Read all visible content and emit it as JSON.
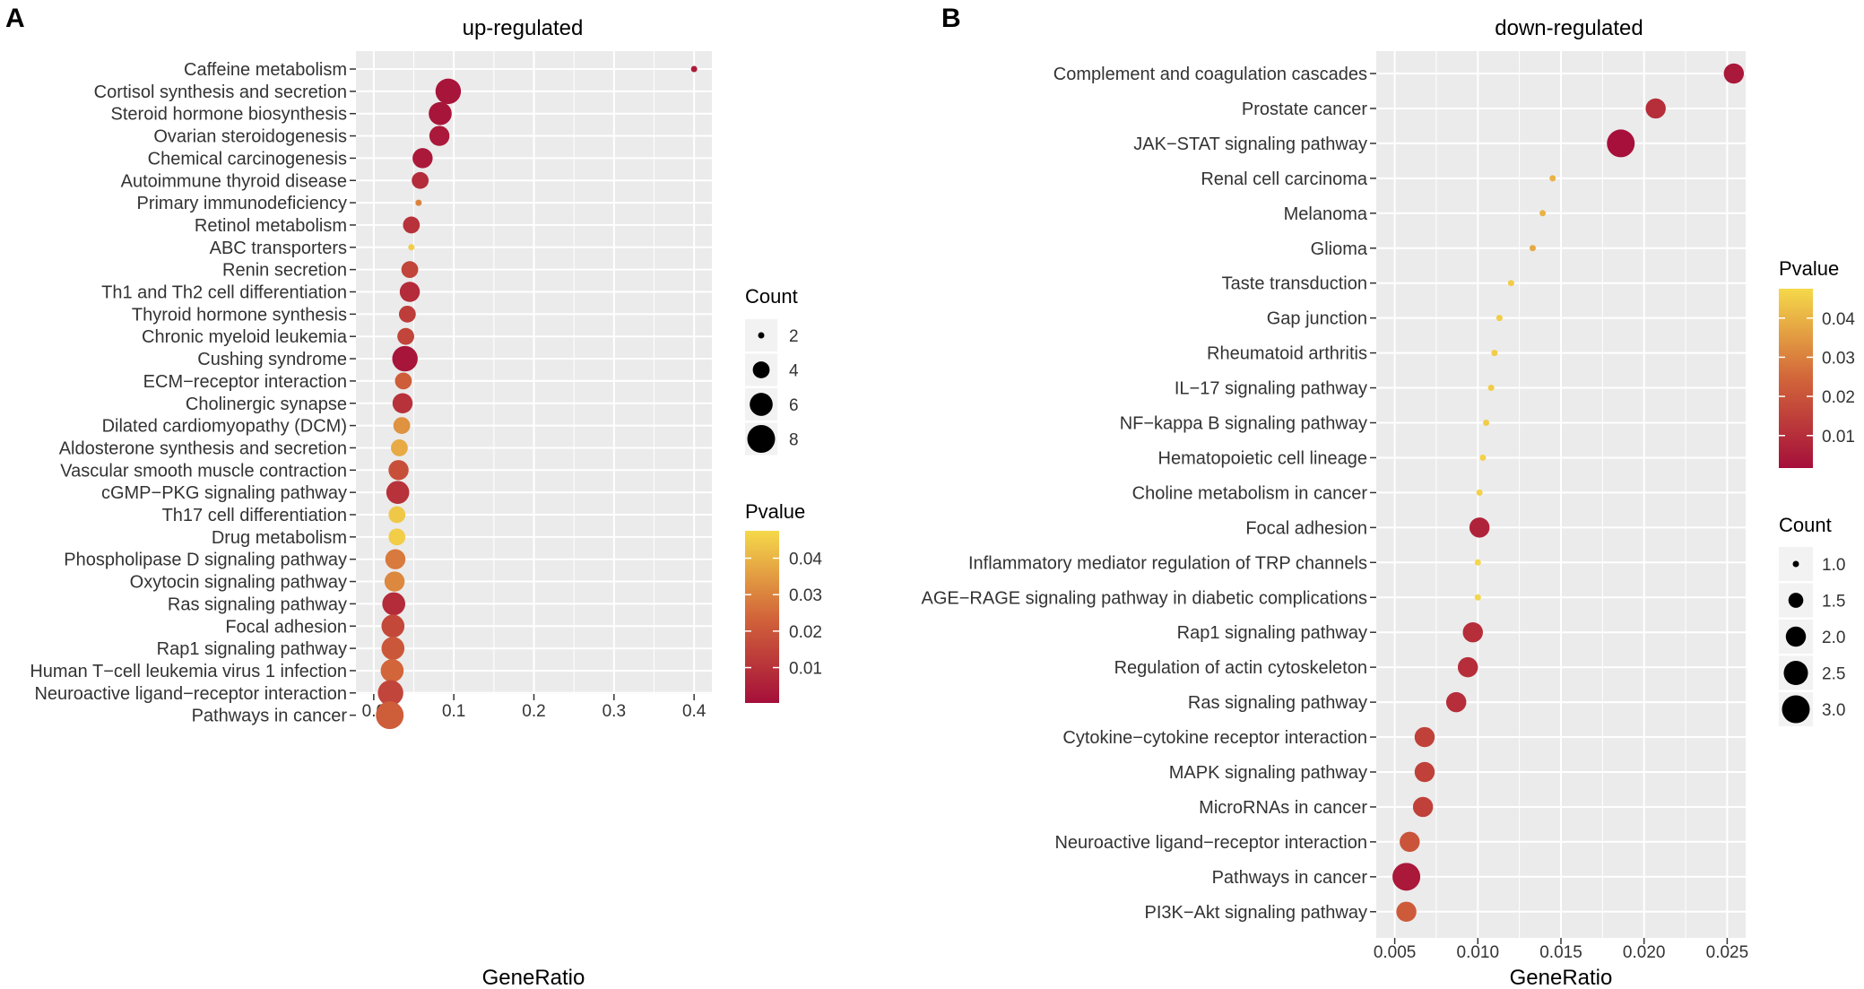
{
  "chart_data": [
    {
      "panel": "A",
      "type": "scatter",
      "title": "up-regulated",
      "xlabel": "GeneRatio",
      "ylabel": "",
      "xlim": [
        0.0,
        0.4
      ],
      "xticks": [
        0.0,
        0.1,
        0.2,
        0.3,
        0.4
      ],
      "xtick_labels": [
        "0.0",
        "0.1",
        "0.2",
        "0.3",
        "0.4"
      ],
      "grid": true,
      "categories": [
        "Caffeine metabolism",
        "Cortisol synthesis and secretion",
        "Steroid hormone biosynthesis",
        "Ovarian steroidogenesis",
        "Chemical carcinogenesis",
        "Autoimmune thyroid disease",
        "Primary immunodeficiency",
        "Retinol metabolism",
        "ABC transporters",
        "Renin secretion",
        "Th1 and Th2 cell differentiation",
        "Thyroid hormone synthesis",
        "Chronic myeloid leukemia",
        "Cushing syndrome",
        "ECM−receptor interaction",
        "Cholinergic synapse",
        "Dilated cardiomyopathy (DCM)",
        "Aldosterone synthesis and secretion",
        "Vascular smooth muscle contraction",
        "cGMP−PKG signaling pathway",
        "Th17 cell differentiation",
        "Drug metabolism",
        "Phospholipase D signaling pathway",
        "Oxytocin signaling pathway",
        "Ras signaling pathway",
        "Focal adhesion",
        "Rap1 signaling pathway",
        "Human T−cell leukemia virus 1 infection",
        "Neuroactive ligand−receptor interaction",
        "Pathways in cancer"
      ],
      "gene_ratio": [
        0.4,
        0.093,
        0.083,
        0.082,
        0.061,
        0.058,
        0.056,
        0.047,
        0.047,
        0.045,
        0.045,
        0.042,
        0.04,
        0.039,
        0.037,
        0.036,
        0.035,
        0.032,
        0.031,
        0.03,
        0.029,
        0.029,
        0.027,
        0.026,
        0.025,
        0.024,
        0.024,
        0.023,
        0.021,
        0.02
      ],
      "count": [
        2,
        7,
        6,
        5,
        5,
        4,
        2,
        4,
        2,
        4,
        5,
        4,
        4,
        7,
        4,
        5,
        4,
        4,
        5,
        6,
        4,
        4,
        5,
        5,
        6,
        6,
        6,
        6,
        7,
        8
      ],
      "pvalue": [
        0.004,
        0.002,
        0.002,
        0.003,
        0.003,
        0.008,
        0.03,
        0.01,
        0.045,
        0.015,
        0.008,
        0.013,
        0.015,
        0.002,
        0.022,
        0.01,
        0.033,
        0.038,
        0.018,
        0.01,
        0.044,
        0.045,
        0.028,
        0.031,
        0.008,
        0.016,
        0.02,
        0.024,
        0.015,
        0.022
      ],
      "size_legend": {
        "title": "Count",
        "values": [
          2,
          4,
          6,
          8
        ],
        "labels": [
          "2",
          "4",
          "6",
          "8"
        ],
        "min": 2,
        "max": 8
      },
      "color_legend": {
        "title": "Pvalue",
        "ticks": [
          0.04,
          0.03,
          0.02,
          0.01
        ],
        "labels": [
          "0.04",
          "0.03",
          "0.02",
          "0.01"
        ],
        "min": 0.0003,
        "max": 0.0475
      }
    },
    {
      "panel": "B",
      "type": "scatter",
      "title": "down-regulated",
      "xlabel": "GeneRatio",
      "ylabel": "",
      "xlim": [
        0.005,
        0.025
      ],
      "xticks": [
        0.005,
        0.01,
        0.015,
        0.02,
        0.025
      ],
      "xtick_labels": [
        "0.005",
        "0.010",
        "0.015",
        "0.020",
        "0.025"
      ],
      "grid": true,
      "categories": [
        "Complement and coagulation cascades",
        "Prostate cancer",
        "JAK−STAT signaling pathway",
        "Renal cell carcinoma",
        "Melanoma",
        "Glioma",
        "Taste transduction",
        "Gap junction",
        "Rheumatoid arthritis",
        "IL−17 signaling pathway",
        "NF−kappa B signaling pathway",
        "Hematopoietic cell lineage",
        "Choline metabolism in cancer",
        "Focal adhesion",
        "Inflammatory mediator regulation of TRP channels",
        "AGE−RAGE signaling pathway in diabetic complications",
        "Rap1 signaling pathway",
        "Regulation of actin cytoskeleton",
        "Ras signaling pathway",
        "Cytokine−cytokine receptor interaction",
        "MAPK signaling pathway",
        "MicroRNAs in cancer",
        "Neuroactive ligand−receptor interaction",
        "Pathways in cancer",
        "PI3K−Akt signaling pathway"
      ],
      "gene_ratio": [
        0.0254,
        0.0207,
        0.0186,
        0.0145,
        0.0139,
        0.0133,
        0.012,
        0.0113,
        0.011,
        0.0108,
        0.0105,
        0.0103,
        0.0101,
        0.0101,
        0.01,
        0.01,
        0.0097,
        0.0094,
        0.0087,
        0.0068,
        0.0068,
        0.0067,
        0.0059,
        0.0057,
        0.0057
      ],
      "count": [
        2,
        2,
        3,
        1,
        1,
        1,
        1,
        1,
        1,
        1,
        1,
        1,
        1,
        2,
        1,
        1,
        2,
        2,
        2,
        2,
        2,
        2,
        2,
        3,
        2
      ],
      "pvalue": [
        0.004,
        0.01,
        0.002,
        0.04,
        0.04,
        0.038,
        0.045,
        0.045,
        0.045,
        0.045,
        0.045,
        0.046,
        0.046,
        0.007,
        0.047,
        0.047,
        0.01,
        0.01,
        0.01,
        0.015,
        0.015,
        0.015,
        0.02,
        0.004,
        0.022
      ],
      "size_legend": {
        "title": "Count",
        "values": [
          1.0,
          1.5,
          2.0,
          2.5,
          3.0
        ],
        "labels": [
          "1.0",
          "1.5",
          "2.0",
          "2.5",
          "3.0"
        ],
        "min": 1,
        "max": 3
      },
      "color_legend": {
        "title": "Pvalue",
        "ticks": [
          0.04,
          0.03,
          0.02,
          0.01
        ],
        "labels": [
          "0.04",
          "0.03",
          "0.02",
          "0.01"
        ],
        "min": 0.0017,
        "max": 0.0475
      }
    }
  ],
  "panel_letters": [
    "A",
    "B"
  ],
  "colors": {
    "panel_bg": "#ebebeb",
    "grid": "#ffffff",
    "low_p": "#a50f3a",
    "mid_p": "#d2653a",
    "high_p": "#f5d94a"
  }
}
